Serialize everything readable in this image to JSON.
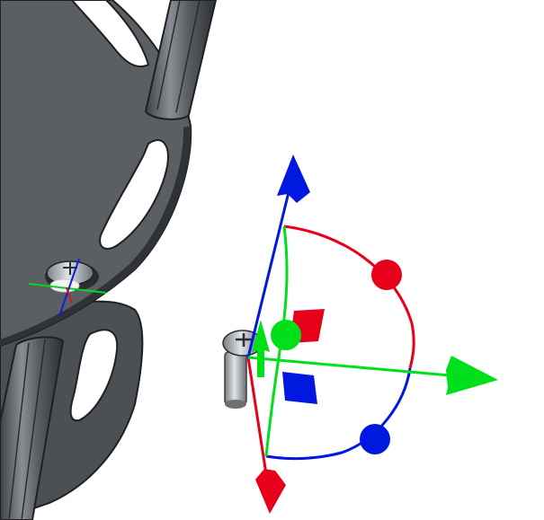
{
  "viewport": {
    "background": "#ffffff"
  },
  "model": {
    "part_name": "robot-chassis-with-standoffs",
    "plate_color": "#5a5e63",
    "plate_edge_color": "#2a2c2f",
    "standoff_color": "#6c7075",
    "screw_color": "#b8bcc0"
  },
  "gizmo": {
    "type": "transform-manipulator",
    "axes": [
      {
        "name": "x",
        "color": "#00e01a",
        "handle": "arrow"
      },
      {
        "name": "y",
        "color": "#e8001a",
        "handle": "arrow"
      },
      {
        "name": "z",
        "color": "#0018e0",
        "handle": "arrow"
      }
    ],
    "rotation_handles": [
      "red-sphere",
      "blue-sphere",
      "green-sphere"
    ],
    "plane_handles": [
      "red-square",
      "blue-square"
    ]
  }
}
